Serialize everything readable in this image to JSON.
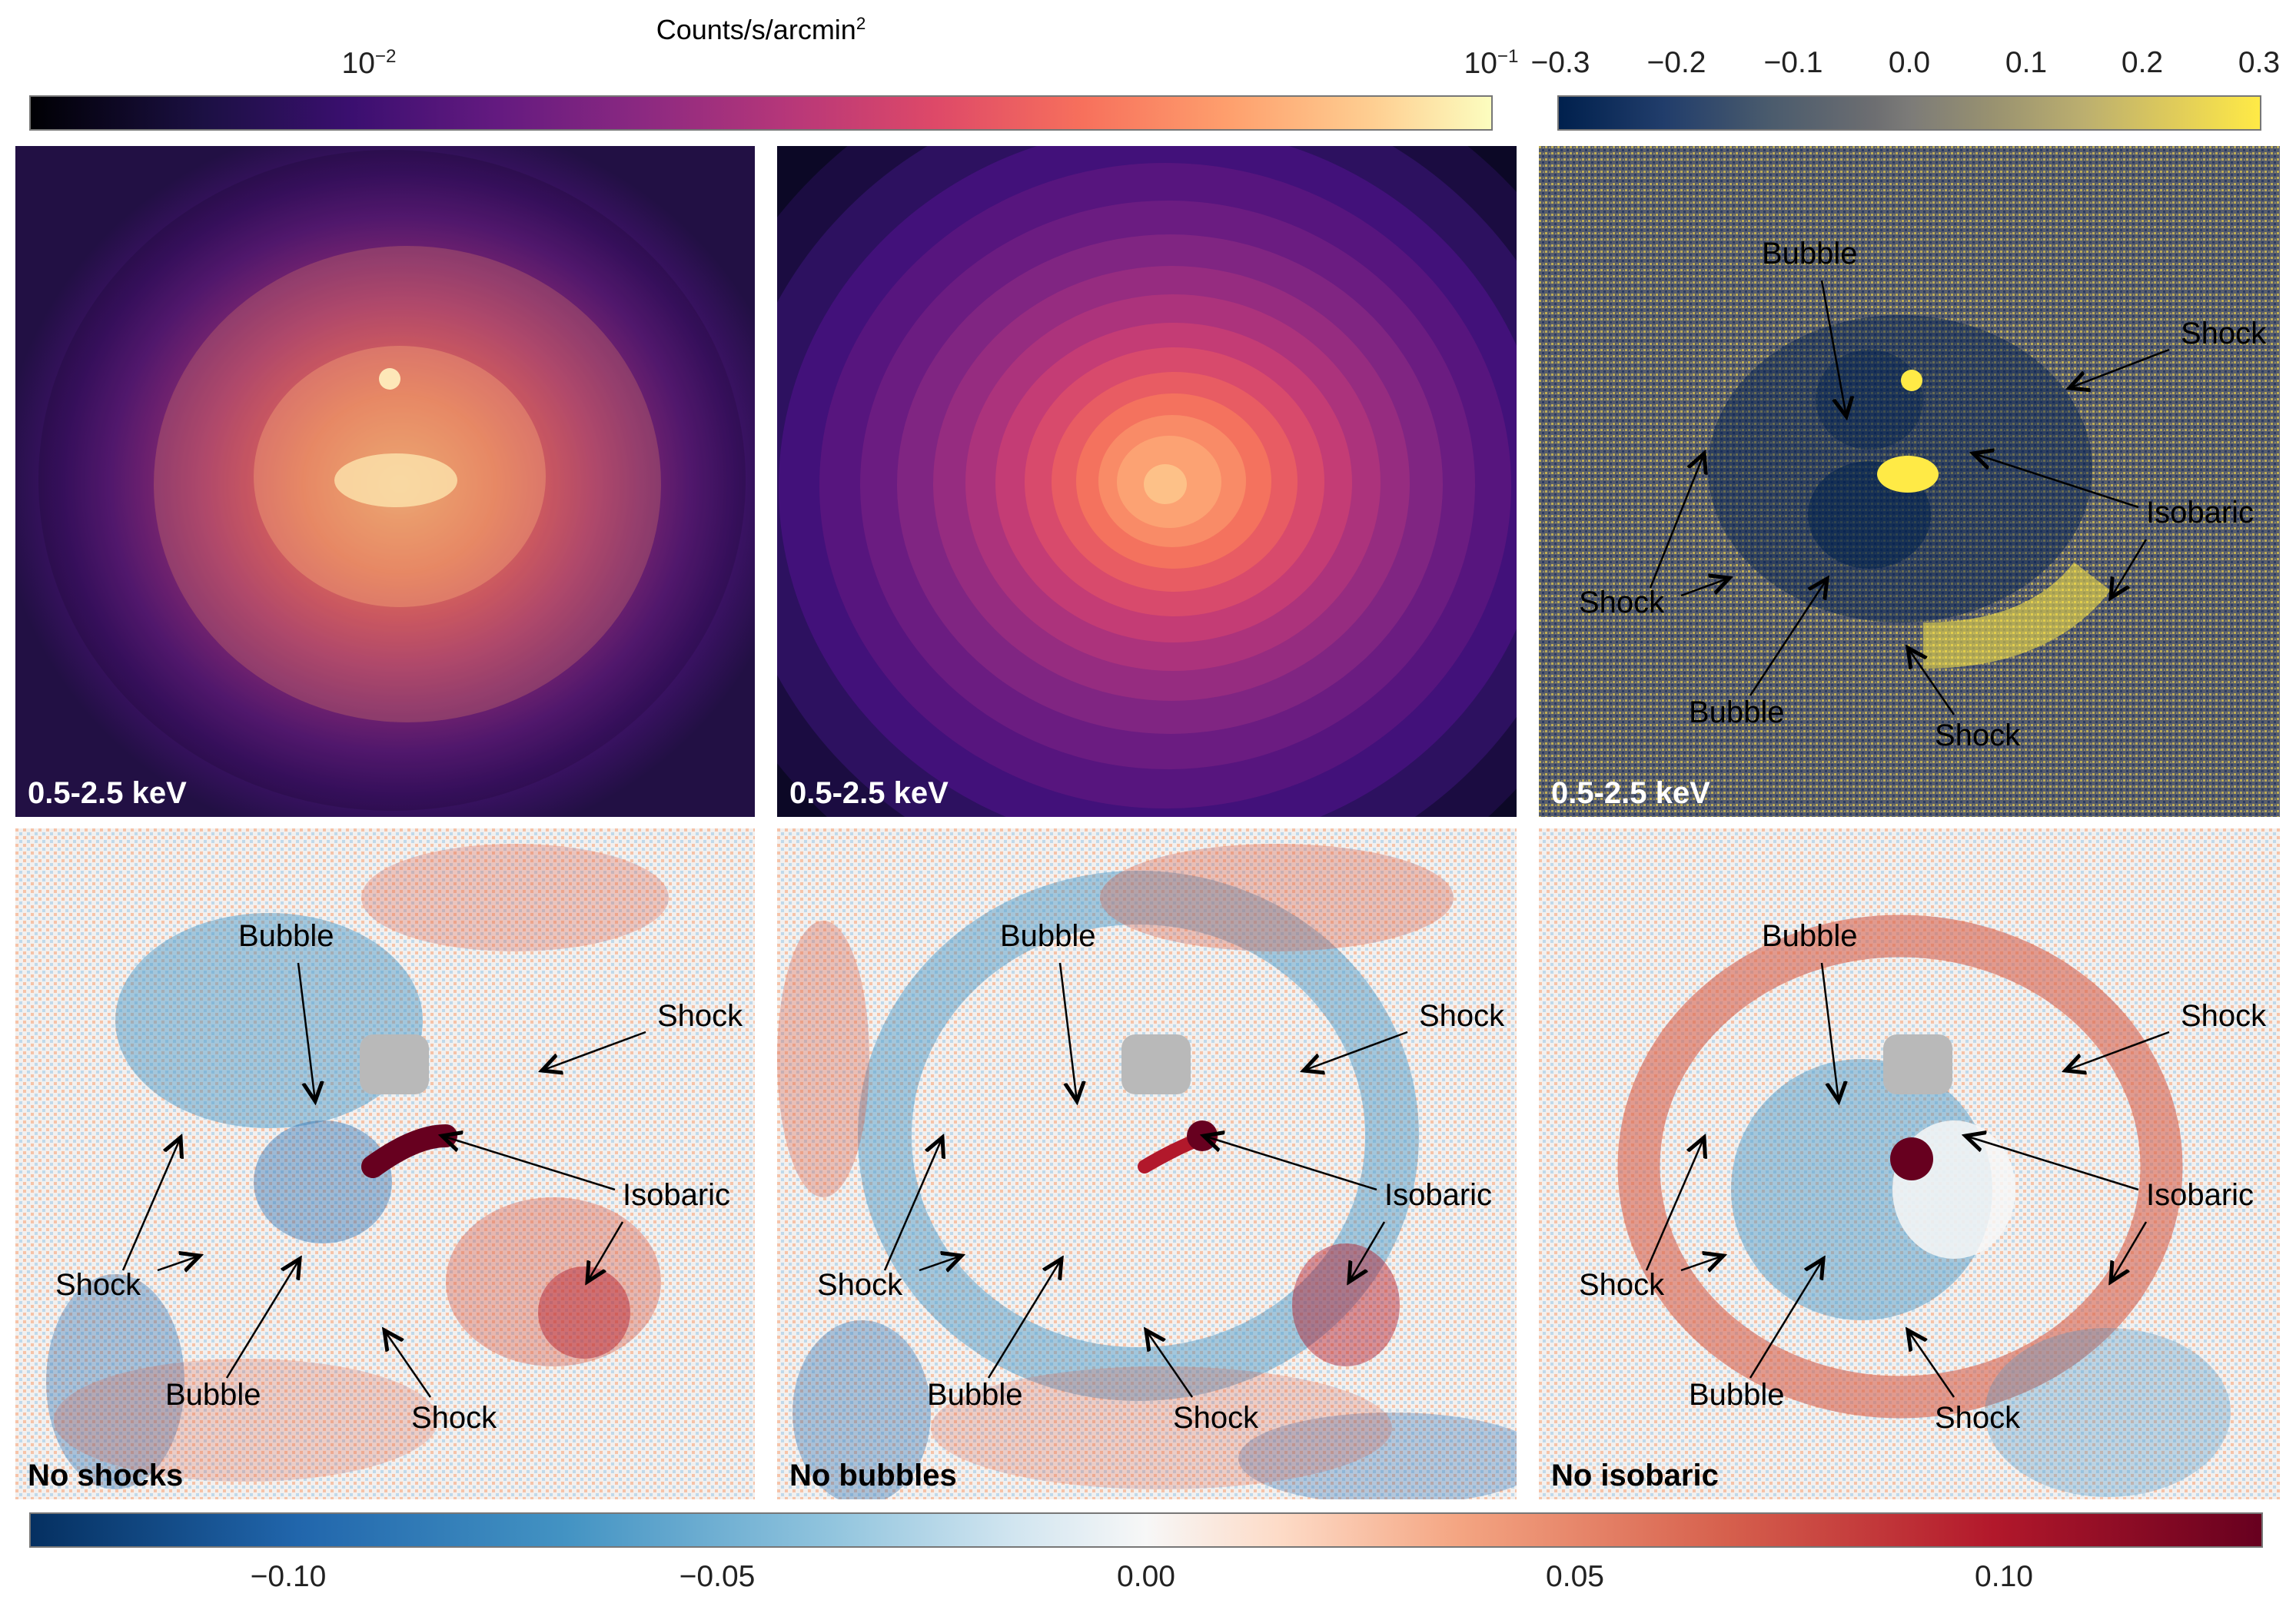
{
  "colorbar_top_left": {
    "title": "Counts/s/arcmin",
    "title_superscript": "2",
    "ticks": [
      {
        "base": "10",
        "exp": "−2"
      },
      {
        "base": "10",
        "exp": "−1"
      }
    ],
    "colormap": "magma"
  },
  "colorbar_top_right": {
    "ticks": [
      "−0.3",
      "−0.2",
      "−0.1",
      "0.0",
      "0.1",
      "0.2",
      "0.3"
    ],
    "colormap": "cividis"
  },
  "colorbar_bottom": {
    "ticks": [
      "−0.10",
      "−0.05",
      "0.00",
      "0.05",
      "0.10"
    ],
    "colormap": "RdBu_r"
  },
  "panels": {
    "top_left": {
      "label": "0.5-2.5 keV"
    },
    "top_middle": {
      "label": "0.5-2.5 keV"
    },
    "top_right": {
      "label": "0.5-2.5 keV",
      "annotations": [
        "Bubble",
        "Shock",
        "Isobaric",
        "Shock",
        "Bubble",
        "Shock"
      ]
    },
    "bottom_left": {
      "label": "No shocks",
      "annotations": [
        "Bubble",
        "Shock",
        "Isobaric",
        "Shock",
        "Bubble",
        "Shock"
      ]
    },
    "bottom_middle": {
      "label": "No bubbles",
      "annotations": [
        "Bubble",
        "Shock",
        "Isobaric",
        "Shock",
        "Bubble",
        "Shock"
      ]
    },
    "bottom_right": {
      "label": "No isobaric",
      "annotations": [
        "Bubble",
        "Shock",
        "Isobaric",
        "Shock",
        "Bubble",
        "Shock"
      ]
    }
  },
  "colors": {
    "magma_dark": "#000004",
    "magma_purple": "#51127c",
    "magma_pink": "#b73779",
    "magma_orange": "#fc8961",
    "magma_light": "#fcfdbf",
    "cividis_dark": "#00204d",
    "cividis_mid": "#7c7b78",
    "cividis_yellow": "#ffea46",
    "rdbu_blue": "#053061",
    "rdbu_white": "#f7f7f7",
    "rdbu_red": "#67001f"
  }
}
